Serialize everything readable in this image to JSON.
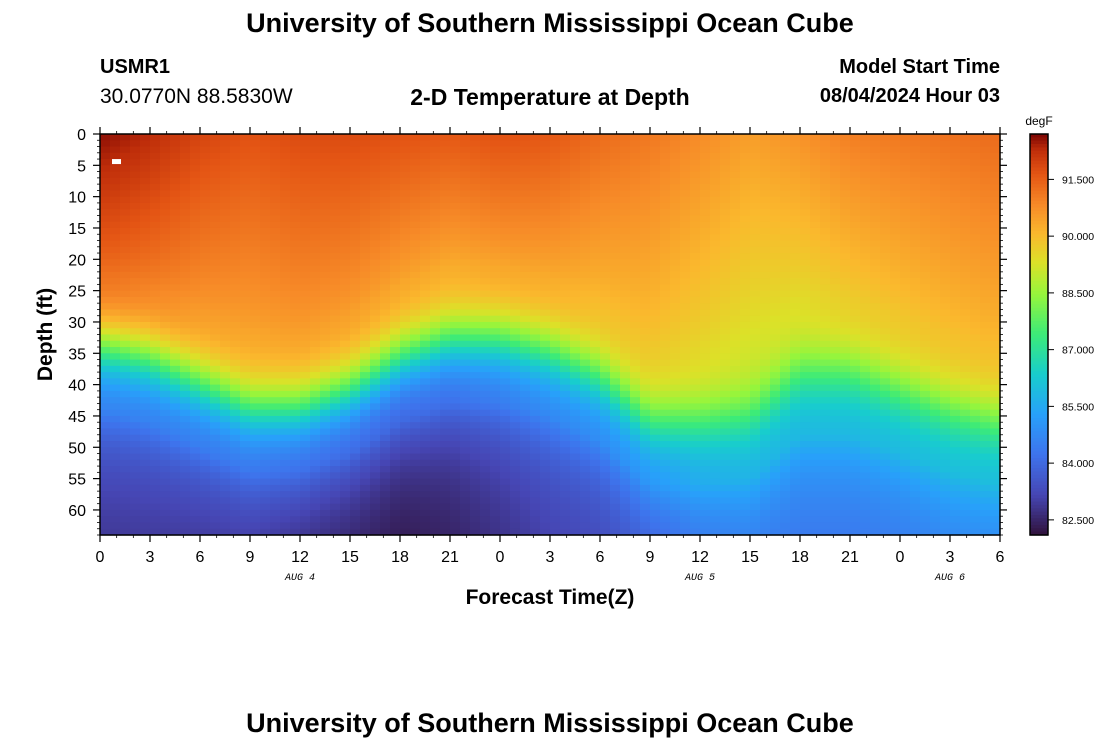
{
  "header": {
    "title": "University of Southern Mississippi Ocean Cube",
    "station_id": "USMR1",
    "coordinates": "30.0770N  88.5830W",
    "subtitle": "2-D Temperature at Depth",
    "model_start_label": "Model Start Time",
    "model_start_value": "08/04/2024 Hour 03"
  },
  "footer": {
    "title": "University of Southern Mississippi Ocean Cube"
  },
  "chart_data": {
    "type": "heatmap",
    "title": "2-D Temperature at Depth",
    "xlabel": "Forecast Time(Z)",
    "ylabel": "Depth (ft)",
    "x_ticks": [
      "0",
      "3",
      "6",
      "9",
      "12",
      "15",
      "18",
      "21",
      "0",
      "3",
      "6",
      "9",
      "12",
      "15",
      "18",
      "21",
      "0",
      "3",
      "6"
    ],
    "x_range_hours": [
      0,
      54
    ],
    "date_labels": [
      {
        "label": "AUG 4",
        "hour": 12
      },
      {
        "label": "AUG 5",
        "hour": 36
      },
      {
        "label": "AUG 6",
        "hour": 51
      }
    ],
    "y_ticks": [
      0,
      5,
      10,
      15,
      20,
      25,
      30,
      35,
      40,
      45,
      50,
      55,
      60
    ],
    "y_range": [
      0,
      64
    ],
    "colorbar": {
      "unit": "degF",
      "ticks": [
        "82.500",
        "84.000",
        "85.500",
        "87.000",
        "88.500",
        "90.000",
        "91.500"
      ],
      "range": [
        82.1,
        92.7
      ]
    },
    "thermocline_depth_ft": {
      "hours": [
        0,
        3,
        6,
        9,
        12,
        15,
        18,
        21,
        24,
        27,
        30,
        33,
        36,
        39,
        42,
        45,
        48,
        51,
        54
      ],
      "values": [
        34,
        36,
        40,
        44,
        44,
        41,
        36,
        33,
        33,
        35,
        39,
        46,
        46,
        45,
        38,
        38,
        41,
        44,
        46
      ]
    },
    "surface_temp_degF": {
      "hours": [
        0,
        3,
        6,
        9,
        12,
        15,
        18,
        21,
        24,
        27,
        30,
        33,
        36,
        39,
        42,
        45,
        48,
        51,
        54
      ],
      "values": [
        92.6,
        92.3,
        91.9,
        91.7,
        91.8,
        91.8,
        91.7,
        91.6,
        91.7,
        91.6,
        91.3,
        91.1,
        90.8,
        90.5,
        90.7,
        91.0,
        91.1,
        91.2,
        91.3
      ]
    },
    "bottom_temp_degF": {
      "hours": [
        0,
        3,
        6,
        9,
        12,
        15,
        18,
        21,
        24,
        27,
        30,
        33,
        36,
        39,
        42,
        45,
        48,
        51,
        54
      ],
      "values": [
        82.7,
        82.7,
        82.6,
        82.5,
        82.3,
        82.2,
        82.1,
        82.3,
        82.6,
        82.9,
        83.0,
        83.3,
        83.8,
        84.0,
        84.1,
        84.1,
        84.1,
        84.2,
        84.2
      ]
    }
  }
}
